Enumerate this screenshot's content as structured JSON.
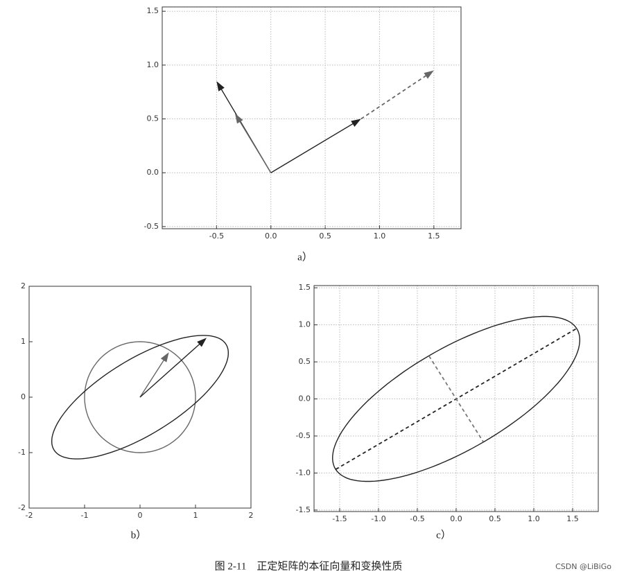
{
  "chart_data": [
    {
      "type": "vector",
      "label": "a）",
      "xlim": [
        -1.0,
        1.75
      ],
      "ylim": [
        -0.52,
        1.54
      ],
      "xticks": [
        -0.5,
        {
          "value": 0,
          "label": "0.0"
        },
        0.5,
        {
          "value": 1,
          "label": "1.0"
        },
        1.5
      ],
      "yticks": [
        -0.5,
        {
          "value": 0,
          "label": "0.0"
        },
        0.5,
        {
          "value": 1,
          "label": "1.0"
        },
        1.5
      ],
      "grid": true,
      "shapes": [],
      "vectors": [
        {
          "x0": 0,
          "y0": 0,
          "x1": -0.5,
          "y1": 0.85,
          "color": "#222",
          "dash": false,
          "head": true
        },
        {
          "x0": 0,
          "y0": 0,
          "x1": -0.33,
          "y1": 0.55,
          "color": "#666",
          "dash": false,
          "head": true
        },
        {
          "x0": 0.83,
          "y0": 0.5,
          "x1": 1.5,
          "y1": 0.95,
          "color": "#666",
          "dash": true,
          "head": true
        },
        {
          "x0": 0,
          "y0": 0,
          "x1": 0.83,
          "y1": 0.5,
          "color": "#222",
          "dash": false,
          "head": true
        }
      ]
    },
    {
      "type": "vector",
      "label": "b）",
      "xlim": [
        -2,
        2
      ],
      "ylim": [
        -2,
        2
      ],
      "xticks": [
        -2,
        -1,
        0,
        1,
        2
      ],
      "yticks": [
        -2,
        -1,
        0,
        1,
        2
      ],
      "grid": false,
      "shapes": [
        {
          "kind": "ellipse",
          "rx": 1,
          "ry": 1,
          "angle": 0,
          "color": "#666"
        },
        {
          "kind": "ellipse",
          "rx": 1.82,
          "ry": 0.68,
          "angle": 31.5,
          "color": "#222"
        }
      ],
      "vectors": [
        {
          "x0": 0,
          "y0": 0,
          "x1": 0.52,
          "y1": 0.81,
          "color": "#666",
          "dash": false,
          "head": true
        },
        {
          "x0": 0,
          "y0": 0,
          "x1": 1.2,
          "y1": 1.07,
          "color": "#222",
          "dash": false,
          "head": true
        }
      ]
    },
    {
      "type": "vector",
      "label": "c）",
      "xlim": [
        -1.83,
        1.83
      ],
      "ylim": [
        -1.52,
        1.53
      ],
      "xticks": [
        -1.5,
        {
          "value": -1,
          "label": "-1.0"
        },
        -0.5,
        {
          "value": 0,
          "label": "0.0"
        },
        0.5,
        {
          "value": 1,
          "label": "1.0"
        },
        1.5
      ],
      "yticks": [
        -1.5,
        {
          "value": -1,
          "label": "-1.0"
        },
        -0.5,
        {
          "value": 0,
          "label": "0.0"
        },
        0.5,
        {
          "value": 1,
          "label": "1.0"
        },
        1.5
      ],
      "grid": true,
      "shapes": [
        {
          "kind": "ellipse",
          "rx": 1.82,
          "ry": 0.68,
          "angle": 31.5,
          "color": "#222"
        }
      ],
      "vectors": [
        {
          "x0": -1.55,
          "y0": -0.95,
          "x1": 1.55,
          "y1": 0.95,
          "color": "#222",
          "dash": true,
          "head": false
        },
        {
          "x0": -0.35,
          "y0": 0.58,
          "x1": 0.35,
          "y1": -0.58,
          "color": "#777",
          "dash": true,
          "head": false
        }
      ]
    }
  ],
  "figure_caption": "图 2-11　正定矩阵的本征向量和变换性质",
  "watermark": "CSDN @LiBiGo"
}
